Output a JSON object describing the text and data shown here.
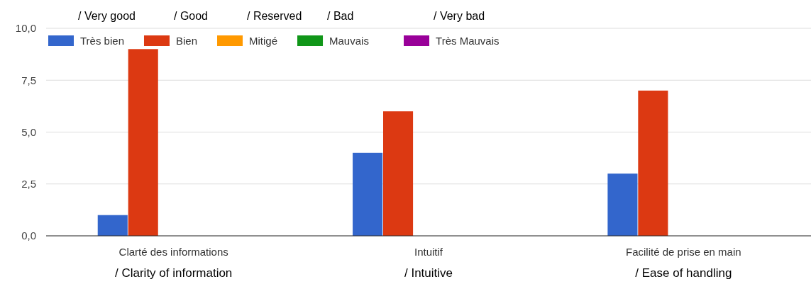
{
  "chart_data": {
    "type": "bar",
    "categories": [
      "Clarté des informations\n/ Clarity of information",
      "Intuitif\n/ Intuitive",
      "Facilité de prise en main\n/ Ease of handling"
    ],
    "series": [
      {
        "name": "Très bien",
        "color": "#3366cc",
        "values": [
          1,
          4,
          3
        ]
      },
      {
        "name": "Bien",
        "color": "#dc3912",
        "values": [
          9,
          6,
          7
        ]
      },
      {
        "name": "Mitigé",
        "color": "#ff9900",
        "values": [
          0,
          0,
          0
        ]
      },
      {
        "name": "Mauvais",
        "color": "#109618",
        "values": [
          0,
          0,
          0
        ]
      },
      {
        "name": "Très Mauvais",
        "color": "#990099",
        "values": [
          0,
          0,
          0
        ]
      }
    ],
    "ylim": [
      0,
      10
    ],
    "yticks": [
      {
        "value": 0,
        "label": "0,0"
      },
      {
        "value": 2.5,
        "label": "2,5"
      },
      {
        "value": 5,
        "label": "5,0"
      },
      {
        "value": 7.5,
        "label": "7,5"
      },
      {
        "value": 10,
        "label": "10,0"
      }
    ],
    "grid": "y",
    "legend": "top left",
    "annotations": [
      "/ Very good",
      "/ Good",
      "/ Reserved",
      "/ Bad",
      "/ Very bad"
    ]
  }
}
